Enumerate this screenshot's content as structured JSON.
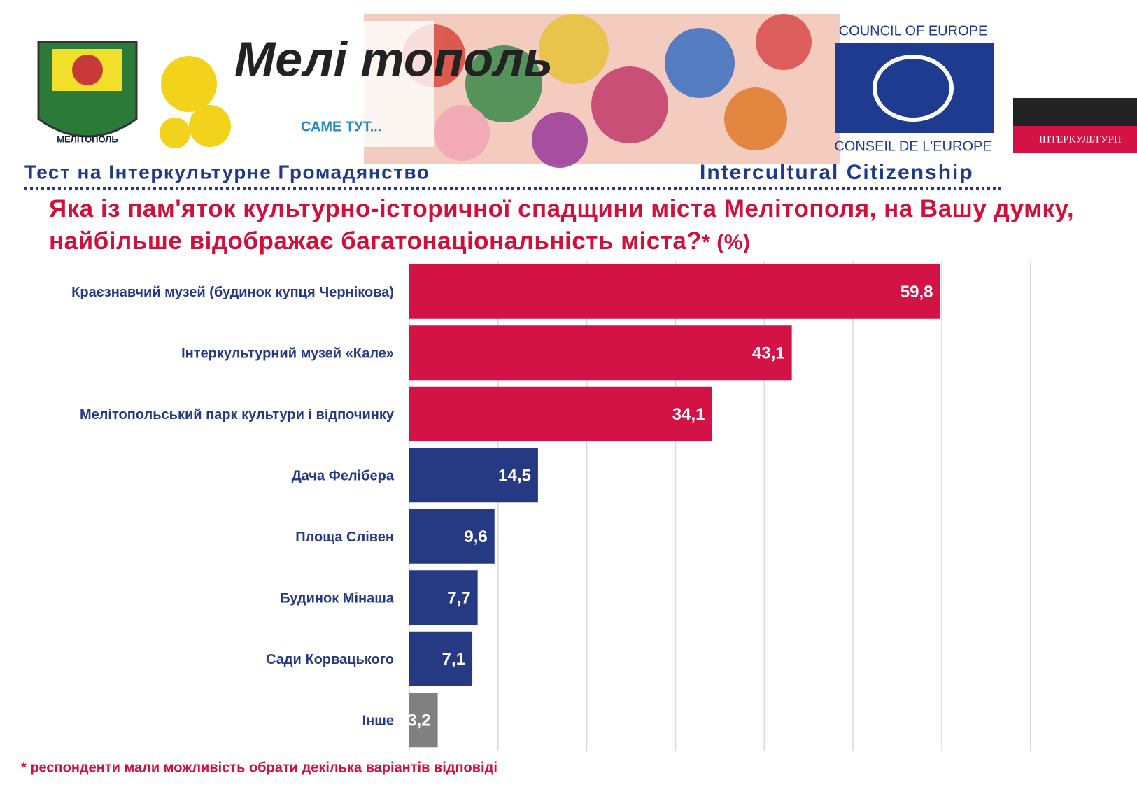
{
  "header": {
    "logo_text": "Мелі тополь",
    "logo_sub": "САМЕ ТУТ...",
    "crest_text": "МЕЛІТОПОЛЬ",
    "council_en": "COUNCIL OF EUROPE",
    "council_fr": "CONSEIL DE L'EUROPE",
    "intercultural_badge": "ІНТЕРКУЛЬТУРН",
    "test_ua": "Тест на Інтеркультурне Громадянство",
    "test_en": "Intercultural Citizenship"
  },
  "chart_data": {
    "type": "hbar",
    "title": "Яка із пам'яток культурно-історичної спадщини міста Мелітополя, на Вашу думку, найбільше відображає багатонаціональність міста?",
    "title_suffix": "* (%)",
    "categories": [
      "Краєзнавчий музей (будинок купця Чернікова)",
      "Інтеркультурний музей «Кале»",
      "Мелітопольський парк культури і відпочинку",
      "Дача Фелібера",
      "Площа Слівен",
      "Будинок Мінаша",
      "Сади Корвацького",
      "Інше"
    ],
    "values": [
      59.8,
      43.1,
      34.1,
      14.5,
      9.6,
      7.7,
      7.1,
      3.2
    ],
    "value_labels": [
      "59,8",
      "43,1",
      "34,1",
      "14,5",
      "9,6",
      "7,7",
      "7,1",
      "3,2"
    ],
    "colors": [
      "#d31245",
      "#d31245",
      "#d31245",
      "#263a84",
      "#263a84",
      "#263a84",
      "#263a84",
      "#808080"
    ],
    "xlim": [
      0,
      82
    ],
    "xticks": [
      0,
      10,
      20,
      30,
      40,
      50,
      60,
      70
    ],
    "grid": true,
    "tick_labels": false,
    "footnote": "* респонденти мали можливість обрати декілька варіантів відповіді"
  }
}
